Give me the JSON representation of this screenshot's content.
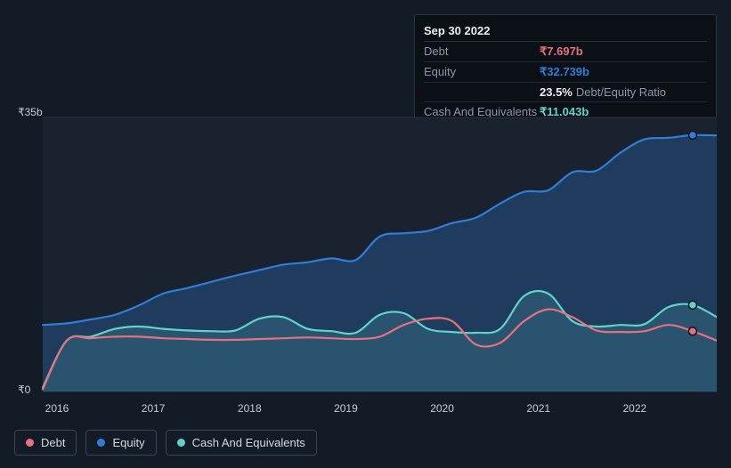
{
  "chart": {
    "type": "area-line",
    "background_color": "#131b27",
    "plot_background_color": "#1a2230",
    "grid_color": "#2a3340",
    "font_family": "Arial",
    "axis_label_fontsize": 12,
    "axis_label_color": "#c7cdd6",
    "y_axis": {
      "min": 0,
      "max": 35,
      "unit": "b",
      "currency": "₹",
      "top_label": "₹35b",
      "bottom_label": "₹0"
    },
    "x_axis": {
      "min": 2016,
      "max": 2023,
      "labels": [
        "2016",
        "2017",
        "2018",
        "2019",
        "2020",
        "2021",
        "2022"
      ]
    },
    "marked_x": 2022.75,
    "series": [
      {
        "key": "equity",
        "label": "Equity",
        "color": "#2f7ed8",
        "fill_color": "#2f7ed8",
        "fill_opacity": 0.28,
        "line_width": 2.2,
        "area": true,
        "marker_color": "#2f7ed8",
        "points": [
          {
            "x": 2016.0,
            "y": 8.5
          },
          {
            "x": 2016.25,
            "y": 8.7
          },
          {
            "x": 2016.5,
            "y": 9.2
          },
          {
            "x": 2016.75,
            "y": 9.8
          },
          {
            "x": 2017.0,
            "y": 11.0
          },
          {
            "x": 2017.25,
            "y": 12.5
          },
          {
            "x": 2017.5,
            "y": 13.2
          },
          {
            "x": 2017.75,
            "y": 14.0
          },
          {
            "x": 2018.0,
            "y": 14.8
          },
          {
            "x": 2018.25,
            "y": 15.5
          },
          {
            "x": 2018.5,
            "y": 16.2
          },
          {
            "x": 2018.75,
            "y": 16.5
          },
          {
            "x": 2019.0,
            "y": 17.0
          },
          {
            "x": 2019.25,
            "y": 16.8
          },
          {
            "x": 2019.5,
            "y": 19.8
          },
          {
            "x": 2019.75,
            "y": 20.2
          },
          {
            "x": 2020.0,
            "y": 20.5
          },
          {
            "x": 2020.25,
            "y": 21.5
          },
          {
            "x": 2020.5,
            "y": 22.2
          },
          {
            "x": 2020.75,
            "y": 24.0
          },
          {
            "x": 2021.0,
            "y": 25.5
          },
          {
            "x": 2021.25,
            "y": 25.7
          },
          {
            "x": 2021.5,
            "y": 28.0
          },
          {
            "x": 2021.75,
            "y": 28.2
          },
          {
            "x": 2022.0,
            "y": 30.5
          },
          {
            "x": 2022.25,
            "y": 32.2
          },
          {
            "x": 2022.5,
            "y": 32.4
          },
          {
            "x": 2022.75,
            "y": 32.739
          },
          {
            "x": 2023.0,
            "y": 32.7
          }
        ]
      },
      {
        "key": "cash",
        "label": "Cash And Equivalents",
        "color": "#5fd4c9",
        "fill_color": "#5fd4c9",
        "fill_opacity": 0.16,
        "line_width": 2.2,
        "area": true,
        "marker_color": "#5fd4c9",
        "points": [
          {
            "x": 2016.0,
            "y": 0.5
          },
          {
            "x": 2016.25,
            "y": 6.5
          },
          {
            "x": 2016.5,
            "y": 7.0
          },
          {
            "x": 2016.75,
            "y": 8.0
          },
          {
            "x": 2017.0,
            "y": 8.3
          },
          {
            "x": 2017.25,
            "y": 8.0
          },
          {
            "x": 2017.5,
            "y": 7.8
          },
          {
            "x": 2017.75,
            "y": 7.7
          },
          {
            "x": 2018.0,
            "y": 7.8
          },
          {
            "x": 2018.25,
            "y": 9.3
          },
          {
            "x": 2018.5,
            "y": 9.5
          },
          {
            "x": 2018.75,
            "y": 8.0
          },
          {
            "x": 2019.0,
            "y": 7.7
          },
          {
            "x": 2019.25,
            "y": 7.5
          },
          {
            "x": 2019.5,
            "y": 9.8
          },
          {
            "x": 2019.75,
            "y": 10.0
          },
          {
            "x": 2020.0,
            "y": 8.0
          },
          {
            "x": 2020.25,
            "y": 7.6
          },
          {
            "x": 2020.5,
            "y": 7.5
          },
          {
            "x": 2020.75,
            "y": 8.0
          },
          {
            "x": 2021.0,
            "y": 12.2
          },
          {
            "x": 2021.25,
            "y": 12.5
          },
          {
            "x": 2021.5,
            "y": 9.0
          },
          {
            "x": 2021.75,
            "y": 8.3
          },
          {
            "x": 2022.0,
            "y": 8.5
          },
          {
            "x": 2022.25,
            "y": 8.6
          },
          {
            "x": 2022.5,
            "y": 10.8
          },
          {
            "x": 2022.75,
            "y": 11.043
          },
          {
            "x": 2023.0,
            "y": 9.5
          }
        ]
      },
      {
        "key": "debt",
        "label": "Debt",
        "color": "#e8717f",
        "fill_color": "#e8717f",
        "fill_opacity": 0.0,
        "line_width": 2.2,
        "area": false,
        "marker_color": "#e8717f",
        "points": [
          {
            "x": 2016.0,
            "y": 0.3
          },
          {
            "x": 2016.25,
            "y": 6.5
          },
          {
            "x": 2016.5,
            "y": 6.8
          },
          {
            "x": 2016.75,
            "y": 7.0
          },
          {
            "x": 2017.0,
            "y": 7.0
          },
          {
            "x": 2017.25,
            "y": 6.8
          },
          {
            "x": 2017.5,
            "y": 6.7
          },
          {
            "x": 2017.75,
            "y": 6.6
          },
          {
            "x": 2018.0,
            "y": 6.6
          },
          {
            "x": 2018.25,
            "y": 6.7
          },
          {
            "x": 2018.5,
            "y": 6.8
          },
          {
            "x": 2018.75,
            "y": 6.9
          },
          {
            "x": 2019.0,
            "y": 6.8
          },
          {
            "x": 2019.25,
            "y": 6.7
          },
          {
            "x": 2019.5,
            "y": 7.0
          },
          {
            "x": 2019.75,
            "y": 8.5
          },
          {
            "x": 2020.0,
            "y": 9.3
          },
          {
            "x": 2020.25,
            "y": 9.0
          },
          {
            "x": 2020.5,
            "y": 6.0
          },
          {
            "x": 2020.75,
            "y": 6.2
          },
          {
            "x": 2021.0,
            "y": 9.0
          },
          {
            "x": 2021.25,
            "y": 10.5
          },
          {
            "x": 2021.5,
            "y": 9.5
          },
          {
            "x": 2021.75,
            "y": 7.8
          },
          {
            "x": 2022.0,
            "y": 7.6
          },
          {
            "x": 2022.25,
            "y": 7.7
          },
          {
            "x": 2022.5,
            "y": 8.5
          },
          {
            "x": 2022.75,
            "y": 7.697
          },
          {
            "x": 2023.0,
            "y": 6.5
          }
        ]
      }
    ],
    "legend": {
      "position": "bottom-left",
      "border_color": "#3a4453",
      "items": [
        {
          "label": "Debt",
          "color": "#e8717f",
          "key": "debt"
        },
        {
          "label": "Equity",
          "color": "#2f7ed8",
          "key": "equity"
        },
        {
          "label": "Cash And Equivalents",
          "color": "#5fd4c9",
          "key": "cash"
        }
      ]
    },
    "tooltip": {
      "date": "Sep 30 2022",
      "rows": [
        {
          "label": "Debt",
          "value": "₹7.697b",
          "color": "#e8717f"
        },
        {
          "label": "Equity",
          "value": "₹32.739b",
          "color": "#2f7ed8"
        },
        {
          "label": "",
          "value": "23.5%",
          "suffix": "Debt/Equity Ratio",
          "color": "#eceff4"
        },
        {
          "label": "Cash And Equivalents",
          "value": "₹11.043b",
          "color": "#5fd4c9"
        }
      ]
    }
  }
}
